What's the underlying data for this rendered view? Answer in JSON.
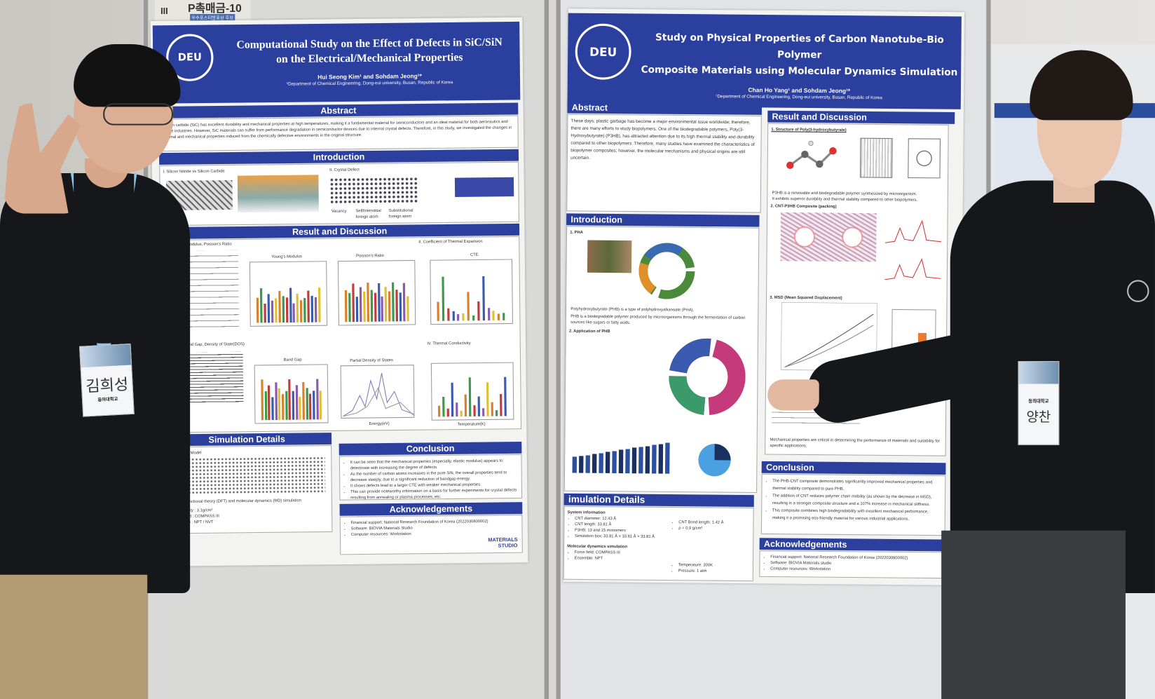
{
  "board_number": {
    "label": "P촉매금-10",
    "sublabel": "우수포스터발표상 후보",
    "marker": "III"
  },
  "left_poster": {
    "logo_text": "DEU",
    "logo_ring": "DONG-EUI UNIVERSITY",
    "title_line1": "Computational Study on the Effect of Defects in SiC/SiN",
    "title_line2": "on the Electrical/Mechanical Properties",
    "authors": "Hui Seong Kim¹ and Sohdam Jeong¹*",
    "department": "¹Department of Chemical Engineering, Dong-eui university, Busan, Republic of Korea",
    "sections": {
      "abstract": "Abstract",
      "introduction": "Introduction",
      "result": "Result and Discussion",
      "simulation": "Simulation Details",
      "conclusion": "Conclusion",
      "acknowledgements": "Acknowledgements"
    },
    "abstract_text": "Silicon carbide (SiC) has excellent durability and mechanical properties at high temperatures, making it a fundamental material for semiconductors and an ideal material for both aeronautics and space industries. However, SiC materials can suffer from performance degradation in semiconductor devices due to internal crystal defects. Therefore, in this study, we investigated the changes in thermal and mechanical properties induced from the chemically defective environments in the original structure.",
    "intro_labels": [
      "I. Silicon Nitride vs Silicon Carbide",
      "II. Crystal Defect",
      "Vacancy",
      "Self/Interstitial foreign atom",
      "Substitutional foreign atom"
    ],
    "chart_titles": [
      "I. Modulus, Poisson's Ratio",
      "Young's Modulus",
      "Poisson's Ratio",
      "II. Coefficient of Thermal Expansion",
      "CTE",
      "Band Gap, Density of State(DOS)",
      "Band Gap",
      "Partial Density of States",
      "IV. Thermal Conductivity"
    ],
    "axis_labels": [
      "Energy(eV)",
      "Temperature(K)"
    ],
    "simulation_text": [
      "1. Simulation Model",
      "2. Density functional theory (DFT) and molecular dynamics (MD) simulation",
      "Cell density : 3.1g/cm³",
      "Force field : COMPASS III",
      "Ensemble : NPT / NVT"
    ],
    "conclusion_items": [
      "It can be seen that the mechanical properties (especially, elastic modulus) appears to deteriorate with increasing the degree of defects.",
      "As the number of carbon atoms increases in the pure SiN, the overall properties tend to decrease steeply, due to a significant reduction of bandgap energy.",
      "It shows defects lead to a larger CTE with weaker mechanical properties.",
      "This can provide noteworthy information on a basis for further experiments for crystal defects resulting from annealing or plasma processes, etc."
    ],
    "ack_items": [
      "Financial support: National Research Foundation of Korea (2022030800002)",
      "Software: BIOVIA Materials Studio",
      "Computer resources: Workstation"
    ],
    "studio_logo": "MATERIALS STUDIO"
  },
  "right_poster": {
    "logo_text": "DEU",
    "logo_ring": "DONG-EUI UNIVERSITY",
    "title_line1": "Study on Physical Properties of Carbon Nanotube-Bio Polymer",
    "title_line2": "Composite Materials using Molecular Dynamics Simulation",
    "authors": "Chan Ho Yang¹ and Sohdam Jeong¹*",
    "department": "¹Department of Chemical Engineering, Dong-eui university, Busan, Republic of Korea",
    "sections": {
      "abstract": "Abstract",
      "introduction": "Introduction",
      "simulation": "imulation Details",
      "result": "Result and Discussion",
      "conclusion": "Conclusion",
      "acknowledgements": "Acknowledgements"
    },
    "abstract_text": "These days, plastic garbage has become a major environmental issue worldwide; therefore, there are many efforts to study biopolymers. One of the biodegradable polymers, Poly(3-Hydroxybutyrate) (P3HB), has attracted attention due to its high thermal stability and durability compared to other biopolymers. Therefore, many studies have examined the characteristics of biopolymer composites; however, the molecular mechanisms and physical origins are still uncertain.",
    "intro_labels": [
      "1. PHA",
      "2. Application of PHB"
    ],
    "intro_bullets": [
      "Polyhydroxybutyrate (PHB) is a type of polyhydroxyalkanoate (PHA).",
      "PHB is a biodegradable polymer produced by microorganisms through the fermentation of carbon sources like sugars or fatty acids."
    ],
    "result_labels": [
      "1. Structure of Poly(3-hydroxybutyrate)",
      "2. CNT-P3HB Composite (packing)",
      "3. MSD (Mean Squared Displacement)"
    ],
    "result_bullets": [
      "P3HB is a renewable and biodegradable polymer synthesized by microorganism.",
      "It exhibits superior durability and thermal stability compared to other biopolymers."
    ],
    "mechanical_note": "Mechanical properties are critical in determining the performance of materials and suitability for specific applications.",
    "system_info_title": "System information",
    "system_info": [
      "CNT diameter: 12.43 Å",
      "CNT length: 33.81 Å",
      "P3HB: 13 and 15 monomers",
      "Simulation box: 33.81 Å × 33.81 Å × 33.81 Å"
    ],
    "system_info_right": [
      "CNT Bond length: 1.42 Å",
      "ρ = 0.9 g/cm³"
    ],
    "md_title": "Molecular dynamics simulation",
    "md_info": [
      "Force field: COMPASS III",
      "Ensemble: NPT"
    ],
    "md_info_right": [
      "Temperature: 300K",
      "Pressure: 1 atm"
    ],
    "conclusion_items": [
      "The PHB-CNT composite demonstrates significantly improved mechanical properties and thermal stability compared to pure PHB.",
      "The addition of CNT reduces polymer chain mobility (as shown by the decrease in MSD), resulting in a stronger composite structure and a 107% increase in mechanical stiffness.",
      "This composite combines high biodegradability with excellent mechanical performance, making it a promising eco-friendly material for various industrial applications."
    ],
    "ack_items": [
      "Financial support: National Research Foundation of Korea (2022030800002)",
      "Software: BIOVIA Materials studio",
      "Computer resources: Workstation"
    ]
  },
  "name_tag_left": {
    "name": "김희성",
    "affiliation": "동의대학교"
  },
  "name_tag_right": {
    "name": "양찬",
    "affiliation": "동의대학교"
  },
  "colors": {
    "poster_blue": "#2a3f9e",
    "jacket": "#15171b",
    "lanyard": "#8fc3e6"
  }
}
